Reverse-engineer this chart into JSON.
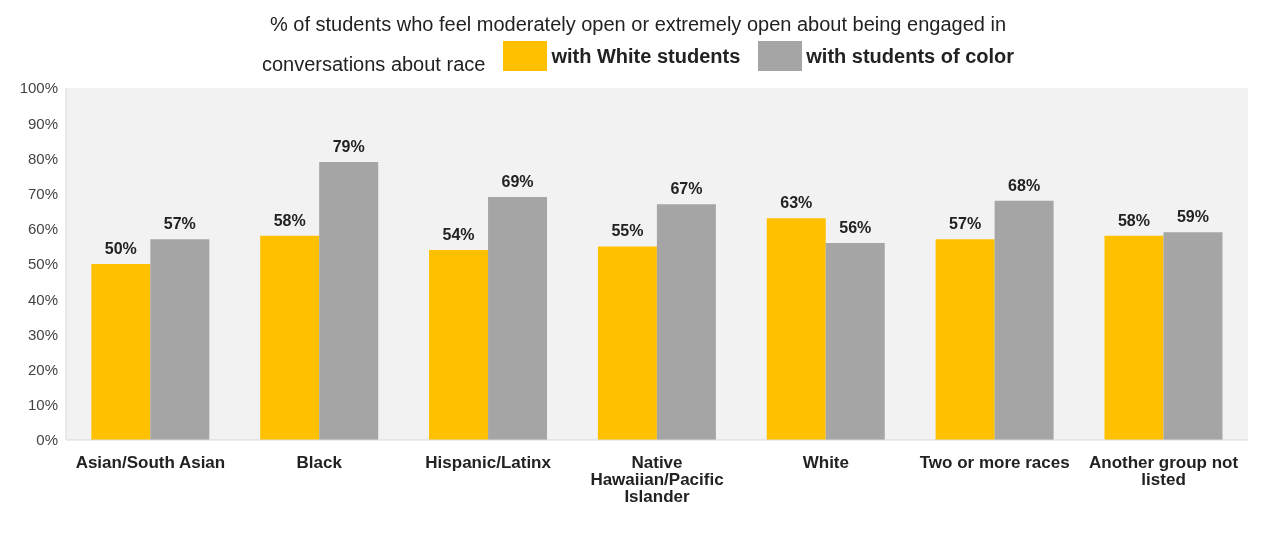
{
  "chart_data": {
    "type": "bar",
    "title": "% of students who feel moderately open or extremely open about being engaged in conversations about race",
    "categories": [
      "Asian/South Asian",
      "Black",
      "Hispanic/Latinx",
      "Native Hawaiian/Pacific Islander",
      "White",
      "Two or more races",
      "Another group not listed"
    ],
    "series": [
      {
        "name": "with White students",
        "color": "#ffc000",
        "values": [
          50,
          58,
          54,
          55,
          63,
          57,
          58
        ],
        "value_labels": [
          "50%",
          "58%",
          "54%",
          "55%",
          "63%",
          "57%",
          "58%"
        ]
      },
      {
        "name": "with students of color",
        "color": "#a5a5a5",
        "values": [
          57,
          79,
          69,
          67,
          56,
          68,
          59
        ],
        "value_labels": [
          "57%",
          "79%",
          "69%",
          "67%",
          "56%",
          "68%",
          "59%"
        ]
      }
    ],
    "ylim": [
      0,
      100
    ],
    "yticks": [
      {
        "value": 0,
        "label": "0%"
      },
      {
        "value": 10,
        "label": "10%"
      },
      {
        "value": 20,
        "label": "20%"
      },
      {
        "value": 30,
        "label": "30%"
      },
      {
        "value": 40,
        "label": "40%"
      },
      {
        "value": 50,
        "label": "50%"
      },
      {
        "value": 60,
        "label": "60%"
      },
      {
        "value": 70,
        "label": "70%"
      },
      {
        "value": 80,
        "label": "80%"
      },
      {
        "value": 90,
        "label": "90%"
      },
      {
        "value": 100,
        "label": "100%"
      }
    ],
    "grid": false,
    "legend": "top"
  }
}
